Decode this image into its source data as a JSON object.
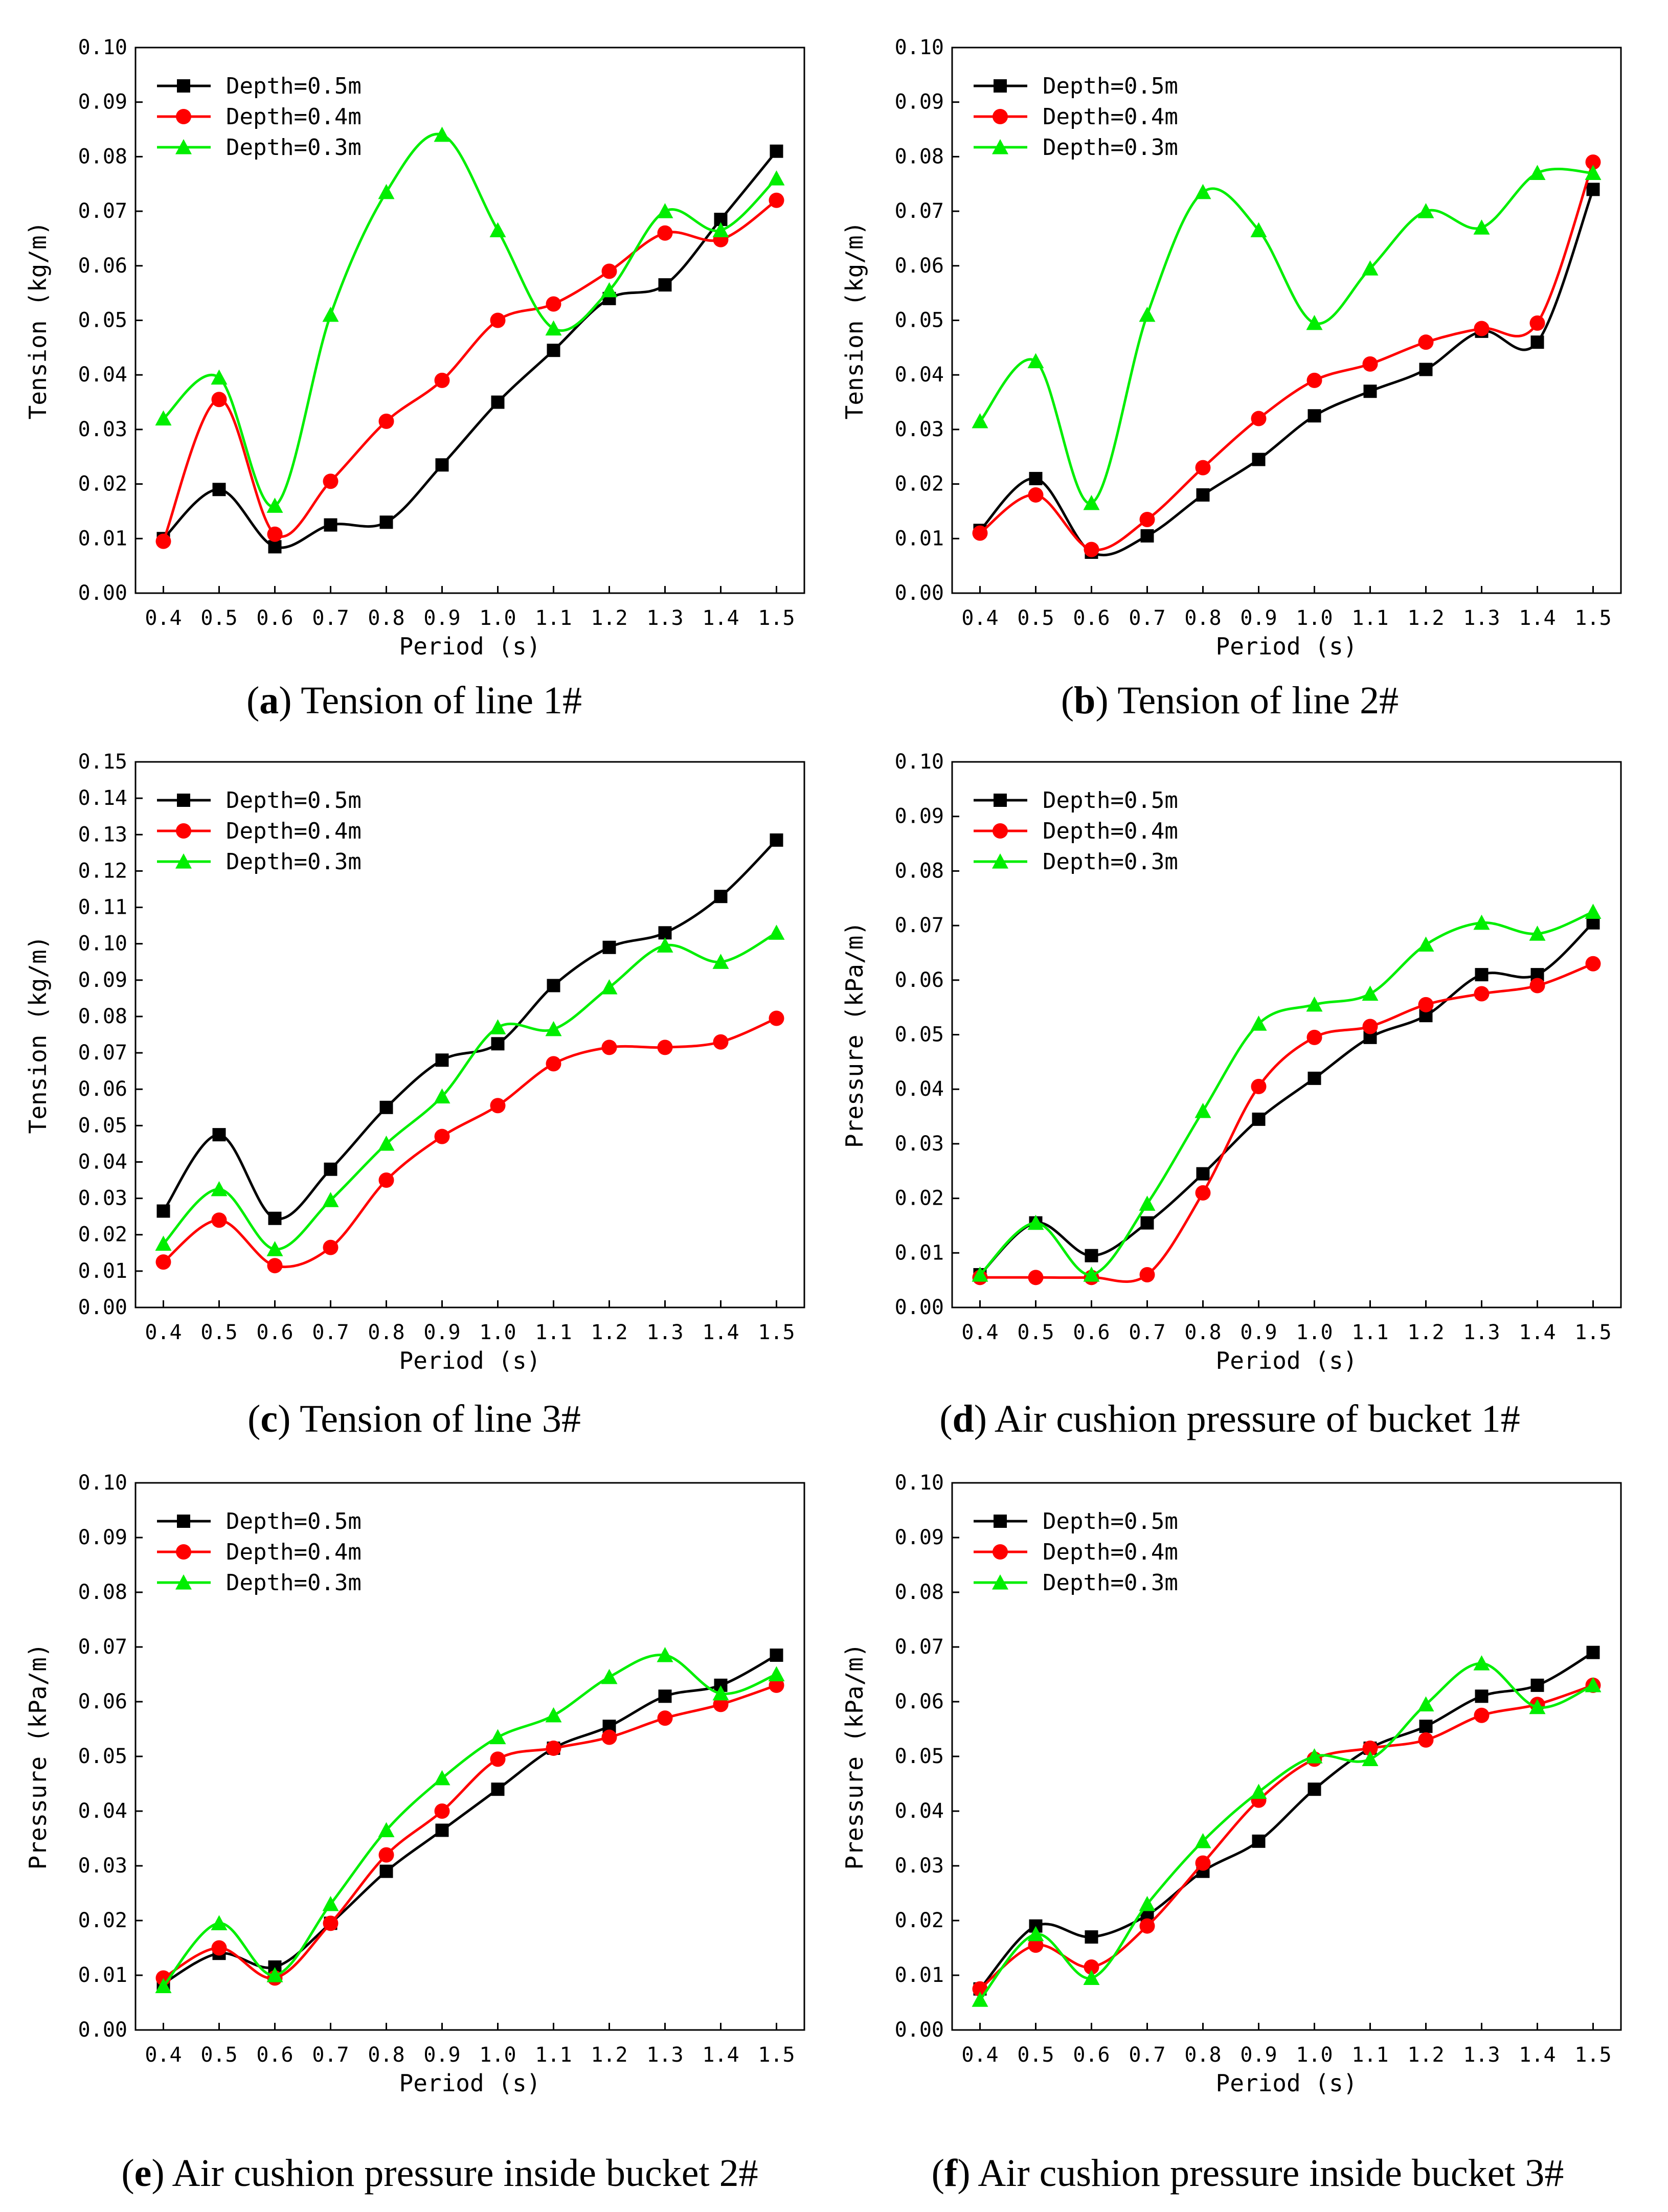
{
  "colors": {
    "depth_05": "#000000",
    "depth_04": "#ff0000",
    "depth_03": "#00ee00"
  },
  "chart_data": [
    {
      "id": "a",
      "type": "line",
      "caption": {
        "letter": "a",
        "text": "Tension of line 1#"
      },
      "xlabel": "Period (s)",
      "ylabel": "Tension (kg/m)",
      "x": [
        0.4,
        0.5,
        0.6,
        0.7,
        0.8,
        0.9,
        1.0,
        1.1,
        1.2,
        1.3,
        1.4,
        1.5
      ],
      "x_ticks": [
        "0.4",
        "0.5",
        "0.6",
        "0.7",
        "0.8",
        "0.9",
        "1.0",
        "1.1",
        "1.2",
        "1.3",
        "1.4",
        "1.5"
      ],
      "ylim": [
        0,
        0.1
      ],
      "y_ticks": [
        "0.00",
        "0.01",
        "0.02",
        "0.03",
        "0.04",
        "0.05",
        "0.06",
        "0.07",
        "0.08",
        "0.09",
        "0.10"
      ],
      "legend_position": "top-left",
      "series": [
        {
          "name": "Depth=0.5m",
          "marker": "square",
          "color": "#000000",
          "values": [
            0.01,
            0.019,
            0.0085,
            0.0125,
            0.013,
            0.0235,
            0.035,
            0.0445,
            0.054,
            0.0565,
            0.0685,
            0.081
          ]
        },
        {
          "name": "Depth=0.4m",
          "marker": "circle",
          "color": "#ff0000",
          "values": [
            0.0095,
            0.0355,
            0.0108,
            0.0205,
            0.0315,
            0.039,
            0.05,
            0.053,
            0.059,
            0.066,
            0.0648,
            0.072
          ]
        },
        {
          "name": "Depth=0.3m",
          "marker": "triangle",
          "color": "#00ee00",
          "values": [
            0.032,
            0.0395,
            0.016,
            0.051,
            0.0735,
            0.084,
            0.0665,
            0.0485,
            0.0555,
            0.07,
            0.0665,
            0.076
          ]
        }
      ]
    },
    {
      "id": "b",
      "type": "line",
      "caption": {
        "letter": "b",
        "text": "Tension of line 2#"
      },
      "xlabel": "Period (s)",
      "ylabel": "Tension (kg/m)",
      "x": [
        0.4,
        0.5,
        0.6,
        0.7,
        0.8,
        0.9,
        1.0,
        1.1,
        1.2,
        1.3,
        1.4,
        1.5
      ],
      "x_ticks": [
        "0.4",
        "0.5",
        "0.6",
        "0.7",
        "0.8",
        "0.9",
        "1.0",
        "1.1",
        "1.2",
        "1.3",
        "1.4",
        "1.5"
      ],
      "ylim": [
        0,
        0.1
      ],
      "y_ticks": [
        "0.00",
        "0.01",
        "0.02",
        "0.03",
        "0.04",
        "0.05",
        "0.06",
        "0.07",
        "0.08",
        "0.09",
        "0.10"
      ],
      "legend_position": "top-left",
      "series": [
        {
          "name": "Depth=0.5m",
          "marker": "square",
          "color": "#000000",
          "values": [
            0.0115,
            0.021,
            0.0075,
            0.0105,
            0.018,
            0.0245,
            0.0325,
            0.037,
            0.041,
            0.048,
            0.046,
            0.074
          ]
        },
        {
          "name": "Depth=0.4m",
          "marker": "circle",
          "color": "#ff0000",
          "values": [
            0.011,
            0.018,
            0.008,
            0.0135,
            0.023,
            0.032,
            0.039,
            0.042,
            0.046,
            0.0485,
            0.0495,
            0.079
          ]
        },
        {
          "name": "Depth=0.3m",
          "marker": "triangle",
          "color": "#00ee00",
          "values": [
            0.0315,
            0.0425,
            0.0165,
            0.051,
            0.0735,
            0.0665,
            0.0495,
            0.0595,
            0.07,
            0.067,
            0.077,
            0.077
          ]
        }
      ]
    },
    {
      "id": "c",
      "type": "line",
      "caption": {
        "letter": "c",
        "text": "Tension of line 3#"
      },
      "xlabel": "Period (s)",
      "ylabel": "Tension (kg/m)",
      "x": [
        0.4,
        0.5,
        0.6,
        0.7,
        0.8,
        0.9,
        1.0,
        1.1,
        1.2,
        1.3,
        1.4,
        1.5
      ],
      "x_ticks": [
        "0.4",
        "0.5",
        "0.6",
        "0.7",
        "0.8",
        "0.9",
        "1.0",
        "1.1",
        "1.2",
        "1.3",
        "1.4",
        "1.5"
      ],
      "ylim": [
        0,
        0.15
      ],
      "y_ticks": [
        "0.00",
        "0.01",
        "0.02",
        "0.03",
        "0.04",
        "0.05",
        "0.06",
        "0.07",
        "0.08",
        "0.09",
        "0.10",
        "0.11",
        "0.12",
        "0.13",
        "0.14",
        "0.15"
      ],
      "legend_position": "top-left",
      "series": [
        {
          "name": "Depth=0.5m",
          "marker": "square",
          "color": "#000000",
          "values": [
            0.0265,
            0.0475,
            0.0245,
            0.038,
            0.055,
            0.068,
            0.0725,
            0.0885,
            0.099,
            0.103,
            0.113,
            0.1285
          ]
        },
        {
          "name": "Depth=0.4m",
          "marker": "circle",
          "color": "#ff0000",
          "values": [
            0.0125,
            0.024,
            0.0115,
            0.0165,
            0.035,
            0.047,
            0.0555,
            0.067,
            0.0715,
            0.0715,
            0.073,
            0.0795
          ]
        },
        {
          "name": "Depth=0.3m",
          "marker": "triangle",
          "color": "#00ee00",
          "values": [
            0.0175,
            0.0325,
            0.016,
            0.0295,
            0.045,
            0.058,
            0.077,
            0.0765,
            0.088,
            0.0995,
            0.095,
            0.103
          ]
        }
      ]
    },
    {
      "id": "d",
      "type": "line",
      "caption": {
        "letter": "d",
        "text": "Air cushion pressure of bucket 1#"
      },
      "xlabel": "Period (s)",
      "ylabel": "Pressure (kPa/m)",
      "x": [
        0.4,
        0.5,
        0.6,
        0.7,
        0.8,
        0.9,
        1.0,
        1.1,
        1.2,
        1.3,
        1.4,
        1.5
      ],
      "x_ticks": [
        "0.4",
        "0.5",
        "0.6",
        "0.7",
        "0.8",
        "0.9",
        "1.0",
        "1.1",
        "1.2",
        "1.3",
        "1.4",
        "1.5"
      ],
      "ylim": [
        0,
        0.1
      ],
      "y_ticks": [
        "0.00",
        "0.01",
        "0.02",
        "0.03",
        "0.04",
        "0.05",
        "0.06",
        "0.07",
        "0.08",
        "0.09",
        "0.10"
      ],
      "legend_position": "top-left",
      "series": [
        {
          "name": "Depth=0.5m",
          "marker": "square",
          "color": "#000000",
          "values": [
            0.006,
            0.0155,
            0.0095,
            0.0155,
            0.0245,
            0.0345,
            0.042,
            0.0495,
            0.0535,
            0.061,
            0.061,
            0.0705
          ]
        },
        {
          "name": "Depth=0.4m",
          "marker": "circle",
          "color": "#ff0000",
          "values": [
            0.0055,
            0.0055,
            0.0055,
            0.006,
            0.021,
            0.0405,
            0.0495,
            0.0515,
            0.0555,
            0.0575,
            0.059,
            0.063
          ]
        },
        {
          "name": "Depth=0.3m",
          "marker": "triangle",
          "color": "#00ee00",
          "values": [
            0.006,
            0.0155,
            0.006,
            0.019,
            0.036,
            0.052,
            0.0555,
            0.0575,
            0.0665,
            0.0705,
            0.0685,
            0.0725
          ]
        }
      ]
    },
    {
      "id": "e",
      "type": "line",
      "caption": {
        "letter": "e",
        "text": "Air cushion pressure inside bucket 2#"
      },
      "xlabel": "Period (s)",
      "ylabel": "Pressure (kPa/m)",
      "x": [
        0.4,
        0.5,
        0.6,
        0.7,
        0.8,
        0.9,
        1.0,
        1.1,
        1.2,
        1.3,
        1.4,
        1.5
      ],
      "x_ticks": [
        "0.4",
        "0.5",
        "0.6",
        "0.7",
        "0.8",
        "0.9",
        "1.0",
        "1.1",
        "1.2",
        "1.3",
        "1.4",
        "1.5"
      ],
      "ylim": [
        0,
        0.1
      ],
      "y_ticks": [
        "0.00",
        "0.01",
        "0.02",
        "0.03",
        "0.04",
        "0.05",
        "0.06",
        "0.07",
        "0.08",
        "0.09",
        "0.10"
      ],
      "legend_position": "top-left",
      "series": [
        {
          "name": "Depth=0.5m",
          "marker": "square",
          "color": "#000000",
          "values": [
            0.0085,
            0.014,
            0.0115,
            0.0195,
            0.029,
            0.0365,
            0.044,
            0.0515,
            0.0555,
            0.061,
            0.063,
            0.0685
          ]
        },
        {
          "name": "Depth=0.4m",
          "marker": "circle",
          "color": "#ff0000",
          "values": [
            0.0095,
            0.015,
            0.0095,
            0.0195,
            0.032,
            0.04,
            0.0495,
            0.0515,
            0.0535,
            0.057,
            0.0595,
            0.063
          ]
        },
        {
          "name": "Depth=0.3m",
          "marker": "triangle",
          "color": "#00ee00",
          "values": [
            0.008,
            0.0195,
            0.01,
            0.023,
            0.0365,
            0.046,
            0.0535,
            0.0575,
            0.0645,
            0.0685,
            0.0615,
            0.065
          ]
        }
      ]
    },
    {
      "id": "f",
      "type": "line",
      "caption": {
        "letter": "f",
        "text": "Air cushion pressure inside bucket 3#"
      },
      "xlabel": "Period (s)",
      "ylabel": "Pressure (kPa/m)",
      "x": [
        0.4,
        0.5,
        0.6,
        0.7,
        0.8,
        0.9,
        1.0,
        1.1,
        1.2,
        1.3,
        1.4,
        1.5
      ],
      "x_ticks": [
        "0.4",
        "0.5",
        "0.6",
        "0.7",
        "0.8",
        "0.9",
        "1.0",
        "1.1",
        "1.2",
        "1.3",
        "1.4",
        "1.5"
      ],
      "ylim": [
        0,
        0.1
      ],
      "y_ticks": [
        "0.00",
        "0.01",
        "0.02",
        "0.03",
        "0.04",
        "0.05",
        "0.06",
        "0.07",
        "0.08",
        "0.09",
        "0.10"
      ],
      "legend_position": "top-left",
      "series": [
        {
          "name": "Depth=0.5m",
          "marker": "square",
          "color": "#000000",
          "values": [
            0.0075,
            0.019,
            0.017,
            0.021,
            0.029,
            0.0345,
            0.044,
            0.0515,
            0.0555,
            0.061,
            0.063,
            0.069
          ]
        },
        {
          "name": "Depth=0.4m",
          "marker": "circle",
          "color": "#ff0000",
          "values": [
            0.0075,
            0.0155,
            0.0115,
            0.019,
            0.0305,
            0.042,
            0.0495,
            0.0515,
            0.053,
            0.0575,
            0.0595,
            0.063
          ]
        },
        {
          "name": "Depth=0.3m",
          "marker": "triangle",
          "color": "#00ee00",
          "values": [
            0.0055,
            0.0175,
            0.0095,
            0.023,
            0.0345,
            0.0435,
            0.05,
            0.0495,
            0.0595,
            0.067,
            0.059,
            0.063
          ]
        }
      ]
    }
  ]
}
